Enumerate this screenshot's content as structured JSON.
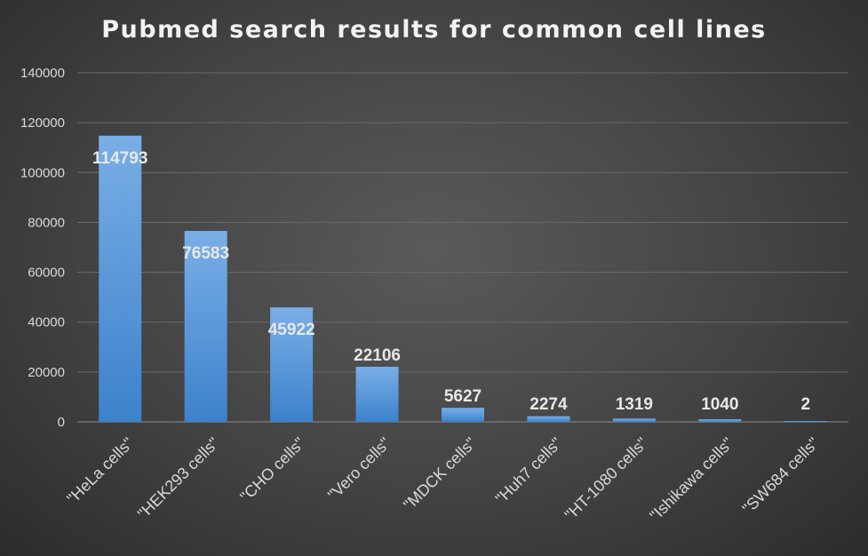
{
  "chart_data": {
    "type": "bar",
    "title": "Pubmed search results for common cell lines",
    "xlabel": "",
    "ylabel": "",
    "categories": [
      "\"HeLa cells\"",
      "\"HEK293 cells\"",
      "\"CHO cells\"",
      "\"Vero cells\"",
      "\"MDCK cells\"",
      "\"Huh7 cells\"",
      "\"HT-1080 cells\"",
      "\"Ishikawa cells\"",
      "\"SW684 cells\""
    ],
    "values": [
      114793,
      76583,
      45922,
      22106,
      5627,
      2274,
      1319,
      1040,
      2
    ],
    "ylim": [
      0,
      140000
    ],
    "yticks": [
      "0",
      "20000",
      "40000",
      "60000",
      "80000",
      "100000",
      "120000",
      "140000"
    ],
    "grid": true,
    "legend": "none",
    "data_labels": true,
    "colors": {
      "bar_top": "#7aaee6",
      "bar_bottom": "#3c82cc",
      "background": "#434343",
      "text": "#d9d9d9"
    }
  }
}
